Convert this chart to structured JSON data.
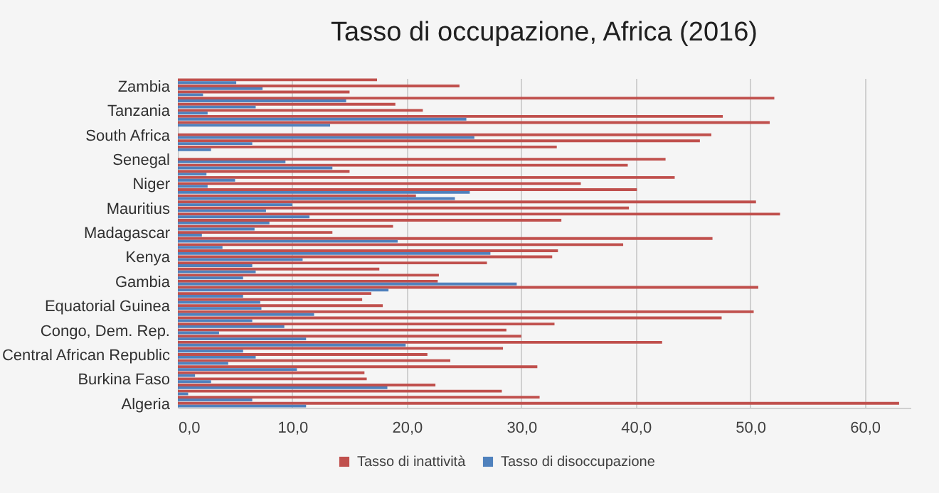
{
  "chart_data": {
    "type": "bar",
    "orientation": "horizontal",
    "title": "Tasso di occupazione, Africa (2016)",
    "categories": [
      null,
      "Zambia",
      null,
      null,
      null,
      "Tanzania",
      null,
      null,
      null,
      "South Africa",
      null,
      null,
      null,
      "Senegal",
      null,
      null,
      null,
      "Niger",
      null,
      null,
      null,
      "Mauritius",
      null,
      null,
      null,
      "Madagascar",
      null,
      null,
      null,
      "Kenya",
      null,
      null,
      null,
      "Gambia",
      null,
      null,
      null,
      "Equatorial Guinea",
      null,
      null,
      null,
      "Congo, Dem. Rep.",
      null,
      null,
      null,
      "Central African Republic",
      null,
      null,
      null,
      "Burkina Faso",
      null,
      null,
      null,
      "Algeria"
    ],
    "series": [
      {
        "name": "Tasso di inattività",
        "color": "#c0504d",
        "values": [
          17.4,
          24.6,
          15.0,
          52.1,
          19.0,
          21.4,
          47.6,
          51.7,
          null,
          46.6,
          45.6,
          33.1,
          null,
          42.6,
          39.3,
          15.0,
          43.4,
          35.2,
          40.1,
          20.8,
          50.5,
          39.4,
          52.6,
          33.5,
          18.8,
          13.5,
          46.7,
          38.9,
          33.2,
          32.7,
          27.0,
          17.6,
          22.8,
          22.7,
          50.7,
          16.9,
          16.1,
          17.9,
          50.3,
          47.5,
          32.9,
          28.7,
          30.0,
          42.3,
          28.4,
          21.8,
          23.8,
          31.4,
          16.3,
          16.5,
          22.5,
          28.3,
          31.6,
          63.0
        ]
      },
      {
        "name": "Tasso di disoccupazione",
        "color": "#4f81bd",
        "values": [
          5.1,
          7.4,
          2.2,
          14.7,
          6.8,
          2.6,
          25.2,
          13.3,
          null,
          25.9,
          6.5,
          2.9,
          null,
          9.4,
          13.5,
          2.5,
          5.0,
          2.6,
          25.5,
          24.2,
          10.0,
          7.7,
          11.5,
          8.0,
          6.7,
          2.1,
          19.2,
          3.9,
          27.3,
          10.9,
          6.5,
          6.8,
          5.7,
          29.6,
          18.4,
          5.7,
          7.2,
          7.3,
          11.9,
          6.5,
          9.3,
          3.6,
          11.2,
          19.9,
          5.7,
          6.8,
          4.4,
          10.4,
          1.5,
          2.9,
          18.3,
          0.9,
          6.5,
          11.2
        ]
      }
    ],
    "xlim": [
      0,
      64
    ],
    "xticks": [
      {
        "value": 0,
        "label": "0,0"
      },
      {
        "value": 10,
        "label": "10,0"
      },
      {
        "value": 20,
        "label": "20,0"
      },
      {
        "value": 30,
        "label": "30,0"
      },
      {
        "value": 40,
        "label": "40,0"
      },
      {
        "value": 50,
        "label": "50,0"
      },
      {
        "value": 60,
        "label": "60,0"
      }
    ],
    "grid": "x",
    "legend": "bottom"
  }
}
